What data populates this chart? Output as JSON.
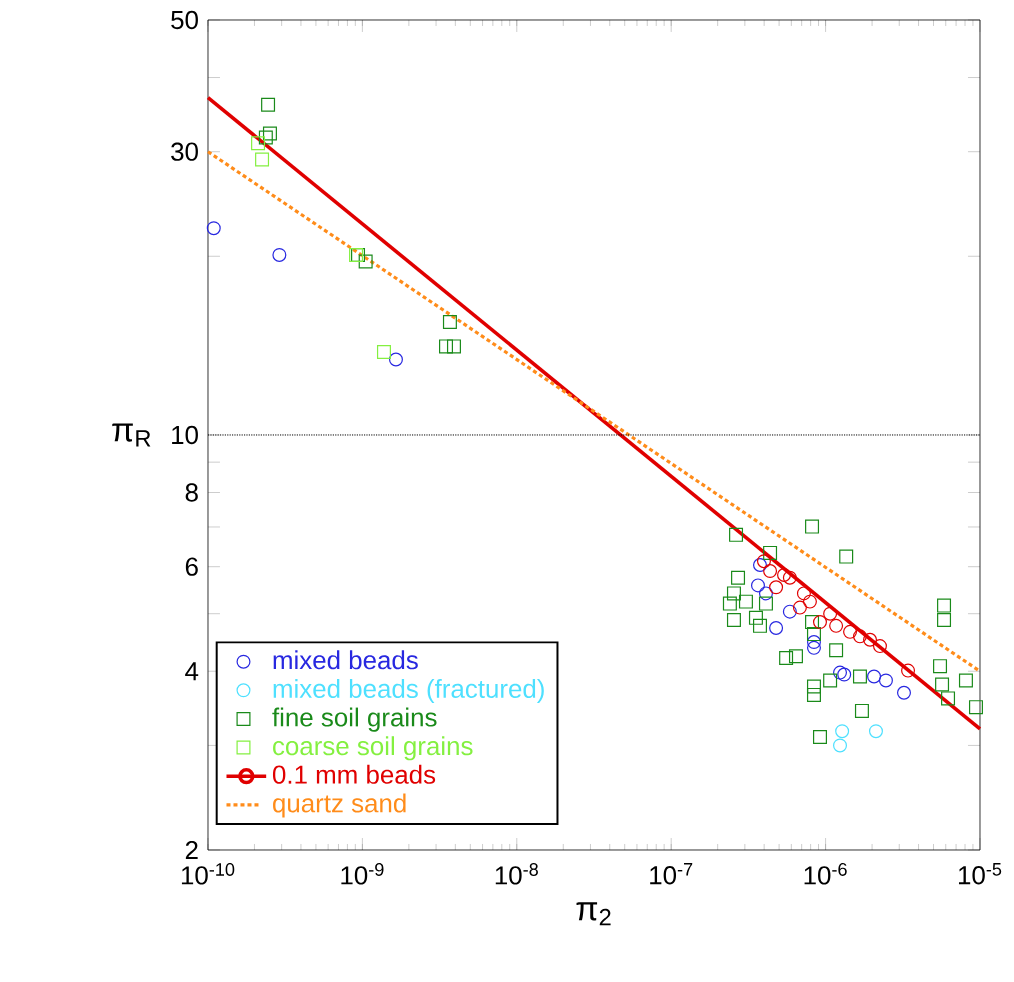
{
  "chart_data": {
    "type": "scatter",
    "xlabel": "π$_{2}$",
    "ylabel": "π$_{R}$",
    "log": "xy",
    "xlim": [
      1e-10,
      1e-05
    ],
    "ylim": [
      2,
      50
    ],
    "xticks": [
      {
        "value": 1e-10,
        "label": "10$^{-10}$"
      },
      {
        "value": 1e-09,
        "label": "10$^{-9}$"
      },
      {
        "value": 1e-08,
        "label": "10$^{-8}$"
      },
      {
        "value": 1e-07,
        "label": "10$^{-7}$"
      },
      {
        "value": 1e-06,
        "label": "10$^{-6}$"
      },
      {
        "value": 1e-05,
        "label": "10$^{-5}$"
      }
    ],
    "yticks": [
      2,
      {
        "value": 3,
        "label": null
      },
      4,
      {
        "value": 5,
        "label": null
      },
      6,
      {
        "value": 7,
        "label": null
      },
      8,
      {
        "value": 9,
        "label": null
      },
      10,
      {
        "value": 20,
        "label": null
      },
      30,
      {
        "value": 40,
        "label": null
      },
      50
    ],
    "grid": false,
    "legend": "bottom left",
    "ref_lines": [
      {
        "axis": "y",
        "value": 10,
        "color": "#000000",
        "line_style": "dotted"
      }
    ],
    "series": [
      {
        "name": "mixed beads",
        "type": "scatter",
        "marker": "circle",
        "color": "#2828e0",
        "x": [
          1.09e-10,
          2.9e-10,
          1.65e-09,
          3.76e-07,
          3.65e-07,
          4.11e-07,
          5.87e-07,
          4.78e-07,
          8.41e-07,
          8.41e-07,
          1.24e-06,
          1.32e-06,
          2.06e-06,
          2.46e-06,
          3.22e-06
        ],
        "values": [
          22.3,
          20.1,
          13.4,
          6.04,
          5.58,
          5.41,
          5.04,
          4.73,
          4.48,
          4.38,
          3.98,
          3.95,
          3.92,
          3.86,
          3.68
        ]
      },
      {
        "name": "mixed beads (fractured)",
        "type": "scatter",
        "marker": "circle",
        "color": "#4ee0ff",
        "x": [
          1.28e-06,
          1.24e-06,
          2.12e-06
        ],
        "values": [
          3.17,
          3.0,
          3.17
        ]
      },
      {
        "name": "fine soil grains",
        "type": "scatter",
        "marker": "square",
        "color": "#1a8a1a",
        "x": [
          2.45e-10,
          2.52e-10,
          2.37e-10,
          1.05e-09,
          9.37e-10,
          3.69e-09,
          3.48e-09,
          3.92e-09,
          2.63e-07,
          8.17e-07,
          1.36e-06,
          4.37e-07,
          2.71e-07,
          2.55e-07,
          2.4e-07,
          3.05e-07,
          2.55e-07,
          3.54e-07,
          4.11e-07,
          3.76e-07,
          8.17e-07,
          8.41e-07,
          5.55e-07,
          6.43e-07,
          1.17e-06,
          8.41e-07,
          8.41e-07,
          1.07e-06,
          1.67e-06,
          1.72e-06,
          9.2e-07,
          5.85e-06,
          5.85e-06,
          5.51e-06,
          5.68e-06,
          6.21e-06,
          8.11e-06,
          9.42e-06
        ],
        "values": [
          36.0,
          32.2,
          31.7,
          19.6,
          20.1,
          15.5,
          14.1,
          14.1,
          6.79,
          7.01,
          6.24,
          6.33,
          5.75,
          5.41,
          5.2,
          5.24,
          4.88,
          4.92,
          5.2,
          4.77,
          4.84,
          4.62,
          4.21,
          4.24,
          4.34,
          3.77,
          3.65,
          3.86,
          3.92,
          3.43,
          3.1,
          5.16,
          4.88,
          4.08,
          3.8,
          3.6,
          3.86,
          3.48
        ]
      },
      {
        "name": "coarse soil grains",
        "type": "scatter",
        "marker": "square",
        "color": "#84f040",
        "x": [
          2.11e-10,
          2.24e-10,
          9.1e-10,
          1.38e-09
        ],
        "values": [
          31.0,
          29.1,
          20.1,
          13.8
        ]
      },
      {
        "name": "0.1 mm beads",
        "type": "scatter",
        "marker": "circle",
        "color": "#e00000",
        "x": [
          3.99e-07,
          4.37e-07,
          5.38e-07,
          5.87e-07,
          4.78e-07,
          7.24e-07,
          7.92e-07,
          6.82e-07,
          1.07e-06,
          9.2e-07,
          1.17e-06,
          1.44e-06,
          1.67e-06,
          1.94e-06,
          2.25e-06,
          3.42e-06
        ],
        "values": [
          6.13,
          5.9,
          5.81,
          5.75,
          5.54,
          5.41,
          5.24,
          5.12,
          5.0,
          4.84,
          4.77,
          4.66,
          4.58,
          4.52,
          4.41,
          4.01
        ]
      },
      {
        "type": "line",
        "line_style": "solid",
        "color": "#e00000",
        "x": [
          1e-10,
          1e-05
        ],
        "values": [
          37,
          3.2
        ]
      },
      {
        "name": "quartz sand",
        "type": "line",
        "line_style": "dotted",
        "color": "#ff8c1a",
        "x": [
          1e-10,
          1e-05
        ],
        "values": [
          30,
          4.0
        ]
      }
    ]
  }
}
